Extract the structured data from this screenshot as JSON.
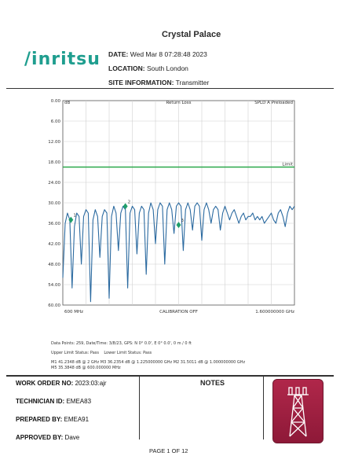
{
  "header": {
    "logo_text": "/inritsu",
    "site_name": "Crystal Palace",
    "date_label": "DATE:",
    "date_value": "Wed Mar 8 07:28:48 2023",
    "location_label": "LOCATION:",
    "location_value": "South London",
    "site_info_label": "SITE INFORMATION:",
    "site_info_value": "Transmitter"
  },
  "chart_data": {
    "type": "line",
    "title": "Return Loss",
    "yunit": "dB",
    "trace_label": "SPLD A Preloaded",
    "y_ticks": [
      "0.00",
      "6.00",
      "12.00",
      "18.00",
      "24.00",
      "30.00",
      "36.00",
      "42.00",
      "48.00",
      "54.00",
      "60.00"
    ],
    "ylim": [
      0,
      60
    ],
    "xlim": [
      0.6,
      1.6
    ],
    "x_start_label": "600 MHz",
    "x_center_label": "CALIBRATION OFF",
    "x_end_label": "1.600000000 GHz",
    "limit_line": {
      "value": 19.5,
      "label": "Limit",
      "color": "#2aa84a"
    },
    "series": [
      {
        "color": "#2b6aa0",
        "x": [
          0.6,
          0.61,
          0.62,
          0.63,
          0.64,
          0.65,
          0.66,
          0.67,
          0.68,
          0.69,
          0.7,
          0.71,
          0.72,
          0.73,
          0.74,
          0.75,
          0.76,
          0.77,
          0.78,
          0.79,
          0.8,
          0.81,
          0.82,
          0.83,
          0.84,
          0.85,
          0.86,
          0.87,
          0.88,
          0.89,
          0.9,
          0.91,
          0.92,
          0.93,
          0.94,
          0.95,
          0.96,
          0.97,
          0.98,
          0.99,
          1.0,
          1.01,
          1.02,
          1.03,
          1.04,
          1.05,
          1.06,
          1.07,
          1.08,
          1.09,
          1.1,
          1.11,
          1.12,
          1.13,
          1.14,
          1.15,
          1.16,
          1.17,
          1.18,
          1.19,
          1.2,
          1.21,
          1.22,
          1.23,
          1.24,
          1.25,
          1.26,
          1.27,
          1.28,
          1.29,
          1.3,
          1.31,
          1.32,
          1.33,
          1.34,
          1.35,
          1.36,
          1.37,
          1.38,
          1.39,
          1.4,
          1.41,
          1.42,
          1.43,
          1.44,
          1.45,
          1.46,
          1.47,
          1.48,
          1.49,
          1.5,
          1.51,
          1.52,
          1.53,
          1.54,
          1.55,
          1.56,
          1.57,
          1.58,
          1.59,
          1.6
        ],
        "values": [
          52,
          36,
          33,
          35,
          55,
          37,
          33,
          34,
          48,
          34,
          32,
          33,
          59,
          35,
          32,
          34,
          46,
          34,
          32,
          33,
          58,
          34,
          31,
          33,
          44,
          33,
          31,
          32,
          55,
          33,
          31,
          32,
          45,
          33,
          31,
          32,
          51,
          33,
          30,
          32,
          42,
          32,
          30,
          31,
          48,
          32,
          30,
          32,
          39,
          31,
          30,
          31,
          44,
          32,
          30,
          32,
          38,
          31,
          30,
          31,
          41,
          32,
          30,
          32,
          36,
          32,
          31,
          32,
          38,
          33,
          31,
          33,
          35,
          33,
          32,
          34,
          36,
          34,
          33,
          35,
          34,
          34,
          33,
          35,
          34,
          35,
          34,
          36,
          35,
          34,
          33,
          35,
          36,
          33,
          32,
          34,
          37,
          33,
          31,
          32,
          31
        ]
      }
    ],
    "markers": [
      {
        "label": "1",
        "x": 0.635,
        "y": 35.0
      },
      {
        "label": "2",
        "x": 0.87,
        "y": 31.0
      },
      {
        "label": "3",
        "x": 1.1,
        "y": 36.5
      }
    ]
  },
  "meta": {
    "line1": "Data Points: 259, Date/Time: 3/8/23, GPS: N 0° 0.0', E 0° 0.0', 0 m / 0 ft",
    "line2a": "Upper Limit Status: Pass",
    "line2b": "Lower Limit Status: Pass",
    "line3": "M1 41.2348 dB @ 2 GHz     M3 36.2354 dB @ 1.225000000 GHz     M2 31.5011 dB @ 1.000000000 GHz",
    "line4": "M5 35.3848 dB @ 600.000000 MHz"
  },
  "work": {
    "order_label": "WORK ORDER NO:",
    "order_value": "2023:03:ajr",
    "tech_label": "TECHNICIAN ID:",
    "tech_value": "EMEA83",
    "prepared_label": "PREPARED BY:",
    "prepared_value": "EMEA91",
    "approved_label": "APPROVED BY:",
    "approved_value": "Dave"
  },
  "notes_title": "NOTES",
  "footer": "PAGE 1 OF 12",
  "tower_icon": "cell-tower-icon"
}
